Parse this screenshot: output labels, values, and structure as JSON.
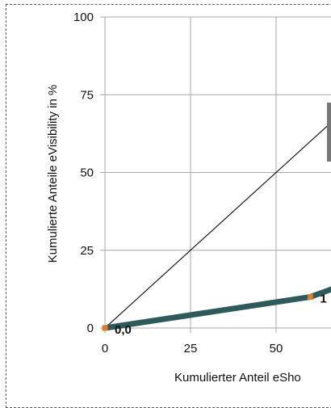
{
  "chart_data": {
    "type": "line",
    "xlabel": "Kumulierter Anteil eSho",
    "ylabel": "Kumulierte Anteile eVisibility in %",
    "xlim": [
      0,
      100
    ],
    "ylim": [
      0,
      100
    ],
    "xticks": [
      0,
      25,
      50
    ],
    "yticks": [
      0,
      25,
      50,
      75,
      100
    ],
    "grid": true,
    "series": [
      {
        "role": "reference-diagonal",
        "color": "#1a1a1a",
        "x": [
          0,
          100
        ],
        "y": [
          0,
          100
        ]
      },
      {
        "role": "curve",
        "color": "#2f5a5a",
        "marker_color": "#e07b2a",
        "x": [
          0,
          60,
          70
        ],
        "y": [
          0,
          10,
          14
        ]
      }
    ],
    "labels": [
      {
        "text": "0,0",
        "x": 0,
        "y": 0
      },
      {
        "text": "1",
        "x": 60,
        "y": 10
      }
    ]
  }
}
